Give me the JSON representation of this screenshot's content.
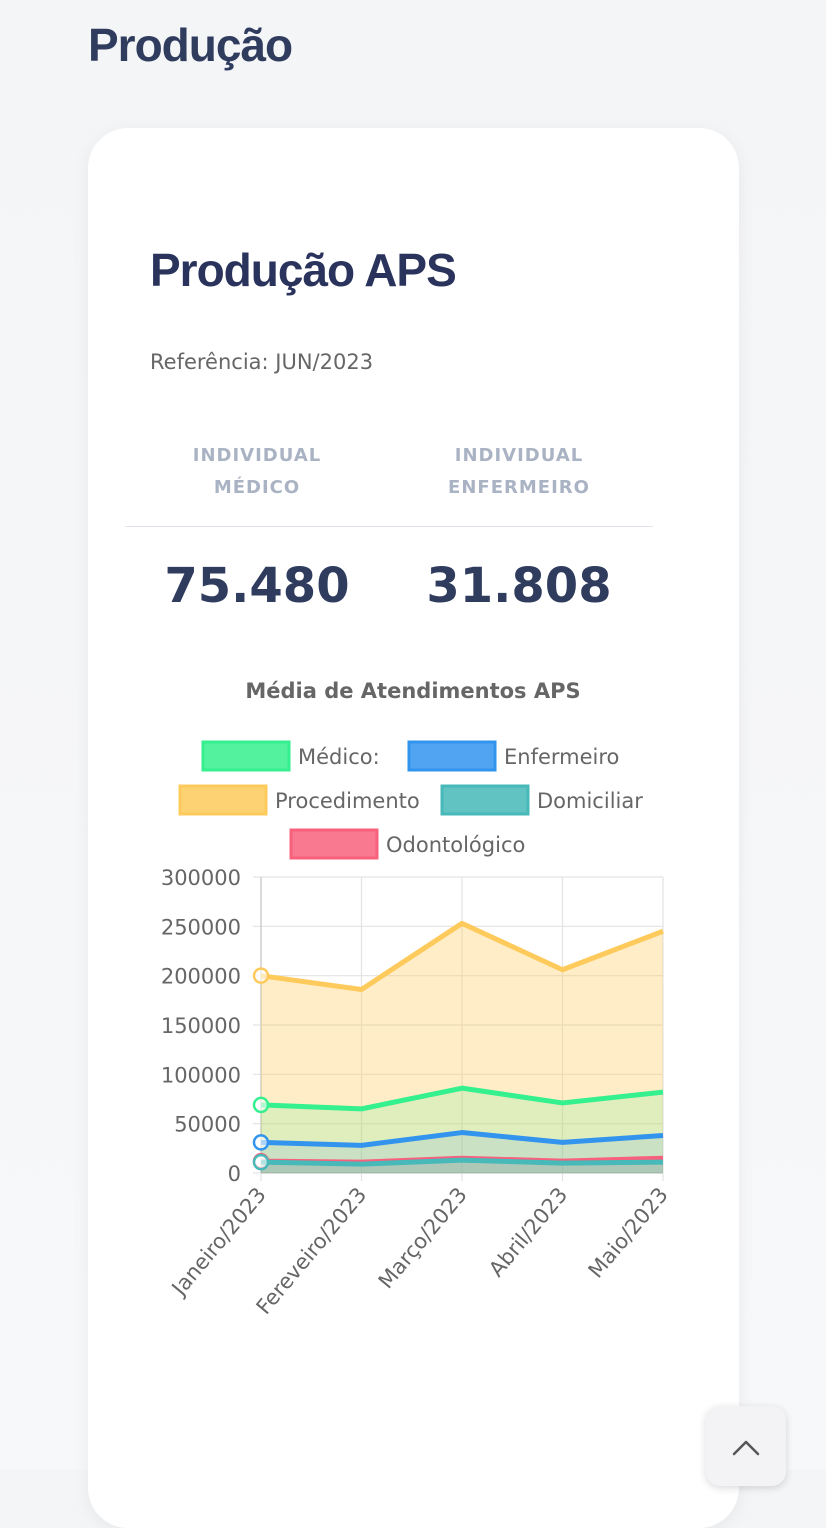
{
  "header": {
    "title": "Produção"
  },
  "card": {
    "title": "Produção APS",
    "reference": "Referência: JUN/2023",
    "stats": [
      {
        "label_line1": "INDIVIDUAL",
        "label_line2": "MÉDICO",
        "value": "75.480"
      },
      {
        "label_line1": "INDIVIDUAL",
        "label_line2": "ENFERMEIRO",
        "value": "31.808"
      }
    ]
  },
  "chart_data": {
    "type": "area",
    "title": "Média de Atendimentos APS",
    "categories": [
      "Janeiro/2023",
      "Fereveiro/2023",
      "Março/2023",
      "Abril/2023",
      "Maio/2023"
    ],
    "ylim": [
      0,
      300000
    ],
    "yticks": [
      0,
      50000,
      100000,
      150000,
      200000,
      250000,
      300000
    ],
    "grid": true,
    "legend_position": "top",
    "series": [
      {
        "name": "Médico:",
        "color": "#35f08e",
        "fill": "rgba(53,240,142,0.15)",
        "values": [
          69000,
          65000,
          86000,
          71000,
          82000
        ]
      },
      {
        "name": "Enfermeiro",
        "color": "#3394ee",
        "fill": "rgba(51,148,238,0.12)",
        "values": [
          31000,
          28000,
          41000,
          31000,
          38000
        ]
      },
      {
        "name": "Procedimento",
        "color": "#fdca5b",
        "fill": "rgba(253,202,91,0.35)",
        "values": [
          200000,
          186000,
          253000,
          206000,
          245000
        ]
      },
      {
        "name": "Domiciliar",
        "color": "#46b9b8",
        "fill": "rgba(70,185,184,0.25)",
        "values": [
          11000,
          9000,
          13000,
          10000,
          11000
        ]
      },
      {
        "name": "Odontológico",
        "color": "#f7617d",
        "fill": "rgba(247,97,125,0.15)",
        "values": [
          12000,
          11000,
          15000,
          12000,
          15000
        ]
      }
    ]
  }
}
